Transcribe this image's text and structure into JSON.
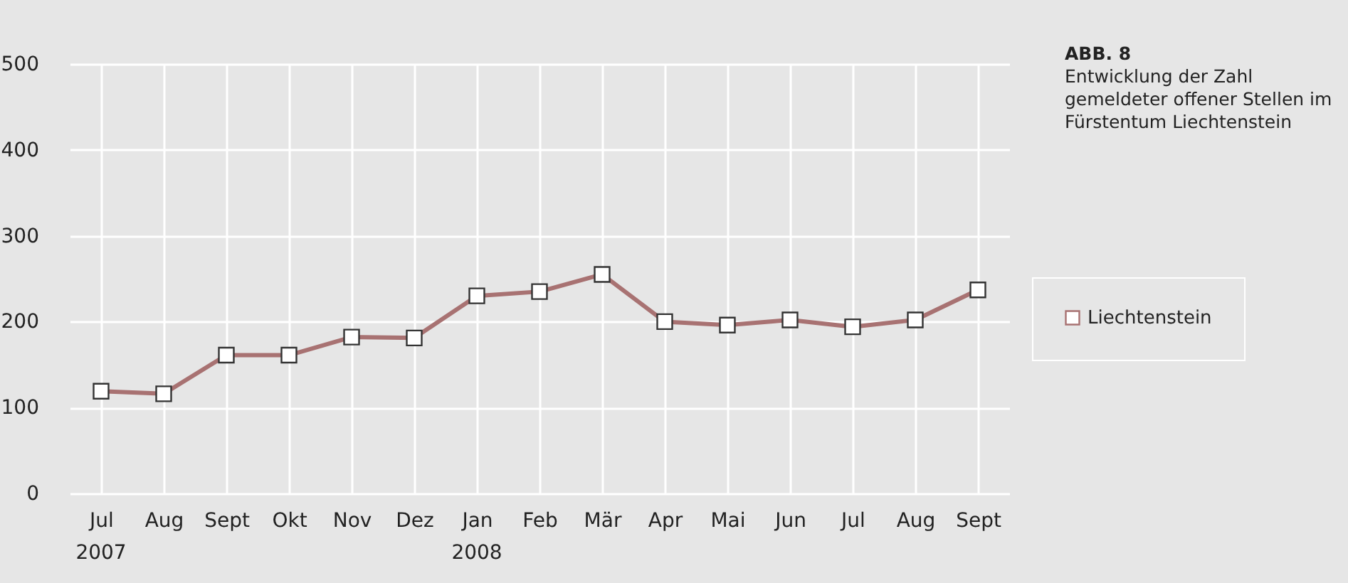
{
  "chart_data": {
    "type": "line",
    "title": "ABB. 8",
    "subtitle": "Entwicklung der Zahl gemeldeter offener Stellen im Fürstentum Liechtenstein",
    "categories": [
      "Jul",
      "Aug",
      "Sept",
      "Okt",
      "Nov",
      "Dez",
      "Jan",
      "Feb",
      "Mär",
      "Apr",
      "Mai",
      "Jun",
      "Jul",
      "Aug",
      "Sept"
    ],
    "series": [
      {
        "name": "Liechtenstein",
        "color": "#a87272",
        "values": [
          119,
          116,
          161,
          161,
          182,
          181,
          230,
          235,
          255,
          200,
          196,
          202,
          194,
          202,
          237
        ]
      }
    ],
    "ylim": [
      0,
      500
    ],
    "yticks": [
      0,
      100,
      200,
      300,
      400,
      500
    ],
    "grid": true,
    "legend": "right",
    "marker": "square",
    "line_style": "solid",
    "annotations": [
      "2007",
      "2008"
    ]
  }
}
